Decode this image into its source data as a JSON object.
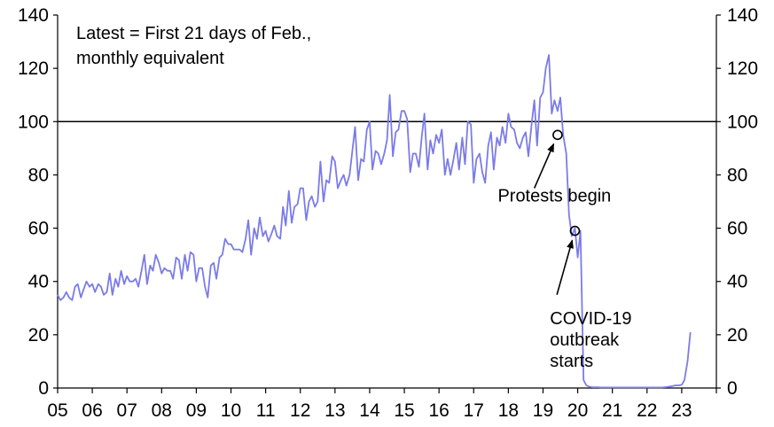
{
  "chart_data": {
    "type": "line",
    "title": "",
    "note_lines": [
      "Latest = First 21 days of Feb.,",
      "monthly equivalent"
    ],
    "xlabel": "",
    "ylabel": "",
    "xlim": [
      2005,
      2024
    ],
    "ylim": [
      0,
      140
    ],
    "y_ticks": [
      "0",
      "20",
      "40",
      "60",
      "80",
      "100",
      "120",
      "140"
    ],
    "x_ticks": [
      "05",
      "06",
      "07",
      "08",
      "09",
      "10",
      "11",
      "12",
      "13",
      "14",
      "15",
      "16",
      "17",
      "18",
      "19",
      "20",
      "21",
      "22",
      "23"
    ],
    "reference_line": {
      "y": 100
    },
    "series": [
      {
        "name": "Monthly equivalent",
        "color": "#7b7be8",
        "points": [
          [
            2005.0,
            35
          ],
          [
            2005.08,
            33
          ],
          [
            2005.17,
            34
          ],
          [
            2005.25,
            36
          ],
          [
            2005.33,
            34
          ],
          [
            2005.42,
            33
          ],
          [
            2005.5,
            38
          ],
          [
            2005.58,
            39
          ],
          [
            2005.67,
            34
          ],
          [
            2005.75,
            37
          ],
          [
            2005.83,
            40
          ],
          [
            2005.92,
            38
          ],
          [
            2006.0,
            39
          ],
          [
            2006.08,
            36
          ],
          [
            2006.17,
            39
          ],
          [
            2006.25,
            38
          ],
          [
            2006.33,
            35
          ],
          [
            2006.42,
            36
          ],
          [
            2006.5,
            43
          ],
          [
            2006.58,
            35
          ],
          [
            2006.67,
            41
          ],
          [
            2006.75,
            38
          ],
          [
            2006.83,
            44
          ],
          [
            2006.92,
            39
          ],
          [
            2007.0,
            42
          ],
          [
            2007.08,
            40
          ],
          [
            2007.17,
            40
          ],
          [
            2007.25,
            41
          ],
          [
            2007.33,
            38
          ],
          [
            2007.42,
            44
          ],
          [
            2007.5,
            50
          ],
          [
            2007.58,
            39
          ],
          [
            2007.67,
            46
          ],
          [
            2007.75,
            44
          ],
          [
            2007.83,
            50
          ],
          [
            2007.92,
            47
          ],
          [
            2008.0,
            43
          ],
          [
            2008.08,
            45
          ],
          [
            2008.17,
            44
          ],
          [
            2008.25,
            44
          ],
          [
            2008.33,
            41
          ],
          [
            2008.42,
            49
          ],
          [
            2008.5,
            48
          ],
          [
            2008.58,
            41
          ],
          [
            2008.67,
            50
          ],
          [
            2008.75,
            44
          ],
          [
            2008.83,
            51
          ],
          [
            2008.92,
            50
          ],
          [
            2009.0,
            40
          ],
          [
            2009.08,
            45
          ],
          [
            2009.17,
            45
          ],
          [
            2009.25,
            38
          ],
          [
            2009.33,
            34
          ],
          [
            2009.42,
            46
          ],
          [
            2009.5,
            47
          ],
          [
            2009.58,
            41
          ],
          [
            2009.67,
            49
          ],
          [
            2009.75,
            50
          ],
          [
            2009.83,
            56
          ],
          [
            2009.92,
            54
          ],
          [
            2010.0,
            54
          ],
          [
            2010.08,
            52
          ],
          [
            2010.17,
            52
          ],
          [
            2010.25,
            52
          ],
          [
            2010.33,
            51
          ],
          [
            2010.42,
            56
          ],
          [
            2010.5,
            63
          ],
          [
            2010.58,
            50
          ],
          [
            2010.67,
            60
          ],
          [
            2010.75,
            56
          ],
          [
            2010.83,
            64
          ],
          [
            2010.92,
            57
          ],
          [
            2011.0,
            59
          ],
          [
            2011.08,
            55
          ],
          [
            2011.17,
            58
          ],
          [
            2011.25,
            61
          ],
          [
            2011.33,
            57
          ],
          [
            2011.42,
            56
          ],
          [
            2011.5,
            68
          ],
          [
            2011.58,
            61
          ],
          [
            2011.67,
            74
          ],
          [
            2011.75,
            62
          ],
          [
            2011.83,
            68
          ],
          [
            2011.92,
            69
          ],
          [
            2012.0,
            75
          ],
          [
            2012.08,
            75
          ],
          [
            2012.17,
            63
          ],
          [
            2012.25,
            70
          ],
          [
            2012.33,
            72
          ],
          [
            2012.42,
            68
          ],
          [
            2012.5,
            70
          ],
          [
            2012.58,
            85
          ],
          [
            2012.67,
            70
          ],
          [
            2012.75,
            78
          ],
          [
            2012.83,
            77
          ],
          [
            2012.92,
            87
          ],
          [
            2013.0,
            85
          ],
          [
            2013.08,
            75
          ],
          [
            2013.17,
            78
          ],
          [
            2013.25,
            80
          ],
          [
            2013.33,
            76
          ],
          [
            2013.42,
            80
          ],
          [
            2013.5,
            89
          ],
          [
            2013.58,
            98
          ],
          [
            2013.67,
            78
          ],
          [
            2013.75,
            86
          ],
          [
            2013.83,
            85
          ],
          [
            2013.92,
            97
          ],
          [
            2014.0,
            100
          ],
          [
            2014.08,
            82
          ],
          [
            2014.17,
            89
          ],
          [
            2014.25,
            88
          ],
          [
            2014.33,
            84
          ],
          [
            2014.42,
            88
          ],
          [
            2014.5,
            93
          ],
          [
            2014.58,
            110
          ],
          [
            2014.67,
            87
          ],
          [
            2014.75,
            96
          ],
          [
            2014.83,
            97
          ],
          [
            2014.92,
            104
          ],
          [
            2015.0,
            104
          ],
          [
            2015.08,
            101
          ],
          [
            2015.17,
            81
          ],
          [
            2015.25,
            88
          ],
          [
            2015.33,
            88
          ],
          [
            2015.42,
            83
          ],
          [
            2015.5,
            94
          ],
          [
            2015.58,
            103
          ],
          [
            2015.67,
            82
          ],
          [
            2015.75,
            93
          ],
          [
            2015.83,
            88
          ],
          [
            2015.92,
            95
          ],
          [
            2016.0,
            92
          ],
          [
            2016.08,
            97
          ],
          [
            2016.17,
            80
          ],
          [
            2016.25,
            86
          ],
          [
            2016.33,
            80
          ],
          [
            2016.42,
            86
          ],
          [
            2016.5,
            92
          ],
          [
            2016.58,
            82
          ],
          [
            2016.67,
            94
          ],
          [
            2016.75,
            84
          ],
          [
            2016.83,
            100
          ],
          [
            2016.92,
            99
          ],
          [
            2017.0,
            77
          ],
          [
            2017.08,
            86
          ],
          [
            2017.17,
            88
          ],
          [
            2017.25,
            81
          ],
          [
            2017.33,
            77
          ],
          [
            2017.42,
            91
          ],
          [
            2017.5,
            96
          ],
          [
            2017.58,
            82
          ],
          [
            2017.67,
            94
          ],
          [
            2017.75,
            91
          ],
          [
            2017.83,
            98
          ],
          [
            2017.92,
            92
          ],
          [
            2018.0,
            103
          ],
          [
            2018.08,
            98
          ],
          [
            2018.17,
            97
          ],
          [
            2018.25,
            92
          ],
          [
            2018.33,
            90
          ],
          [
            2018.42,
            94
          ],
          [
            2018.5,
            96
          ],
          [
            2018.58,
            87
          ],
          [
            2018.67,
            99
          ],
          [
            2018.75,
            108
          ],
          [
            2018.83,
            91
          ],
          [
            2018.92,
            109
          ],
          [
            2019.0,
            111
          ],
          [
            2019.08,
            120
          ],
          [
            2019.17,
            125
          ],
          [
            2019.25,
            103
          ],
          [
            2019.33,
            108
          ],
          [
            2019.42,
            104
          ],
          [
            2019.5,
            109
          ],
          [
            2019.58,
            95
          ],
          [
            2019.67,
            88
          ],
          [
            2019.75,
            65
          ],
          [
            2019.83,
            57
          ],
          [
            2019.92,
            60
          ],
          [
            2020.0,
            49
          ],
          [
            2020.08,
            59
          ],
          [
            2020.17,
            3
          ],
          [
            2020.25,
            1
          ],
          [
            2020.33,
            0.5
          ],
          [
            2020.42,
            0.3
          ],
          [
            2020.5,
            0.3
          ],
          [
            2020.58,
            0.3
          ],
          [
            2020.67,
            0.2
          ],
          [
            2020.75,
            0.2
          ],
          [
            2020.83,
            0.2
          ],
          [
            2020.92,
            0.2
          ],
          [
            2021.0,
            0.2
          ],
          [
            2021.08,
            0.2
          ],
          [
            2021.17,
            0.2
          ],
          [
            2021.25,
            0.2
          ],
          [
            2021.33,
            0.2
          ],
          [
            2021.42,
            0.2
          ],
          [
            2021.5,
            0.2
          ],
          [
            2021.58,
            0.2
          ],
          [
            2021.67,
            0.2
          ],
          [
            2021.75,
            0.2
          ],
          [
            2021.83,
            0.2
          ],
          [
            2021.92,
            0.2
          ],
          [
            2022.0,
            0.2
          ],
          [
            2022.08,
            0.2
          ],
          [
            2022.17,
            0.2
          ],
          [
            2022.25,
            0.2
          ],
          [
            2022.33,
            0.2
          ],
          [
            2022.42,
            0.2
          ],
          [
            2022.5,
            0.3
          ],
          [
            2022.58,
            0.4
          ],
          [
            2022.67,
            0.6
          ],
          [
            2022.75,
            0.8
          ],
          [
            2022.83,
            1
          ],
          [
            2022.92,
            1
          ],
          [
            2023.0,
            1.2
          ],
          [
            2023.08,
            3
          ],
          [
            2023.17,
            10
          ],
          [
            2023.25,
            21
          ]
        ]
      }
    ],
    "annotations": [
      {
        "name": "protests-annotation",
        "lines": [
          "Protests begin"
        ],
        "target": [
          2019.42,
          95
        ],
        "label_at": [
          2019.33,
          70
        ],
        "arrow_from": [
          2018.75,
          75
        ]
      },
      {
        "name": "covid-annotation",
        "lines": [
          "COVID-19",
          "outbreak",
          "starts"
        ],
        "target": [
          2019.92,
          59
        ],
        "label_at": [
          2019.2,
          24
        ],
        "arrow_from": [
          2019.4,
          35
        ]
      }
    ]
  }
}
